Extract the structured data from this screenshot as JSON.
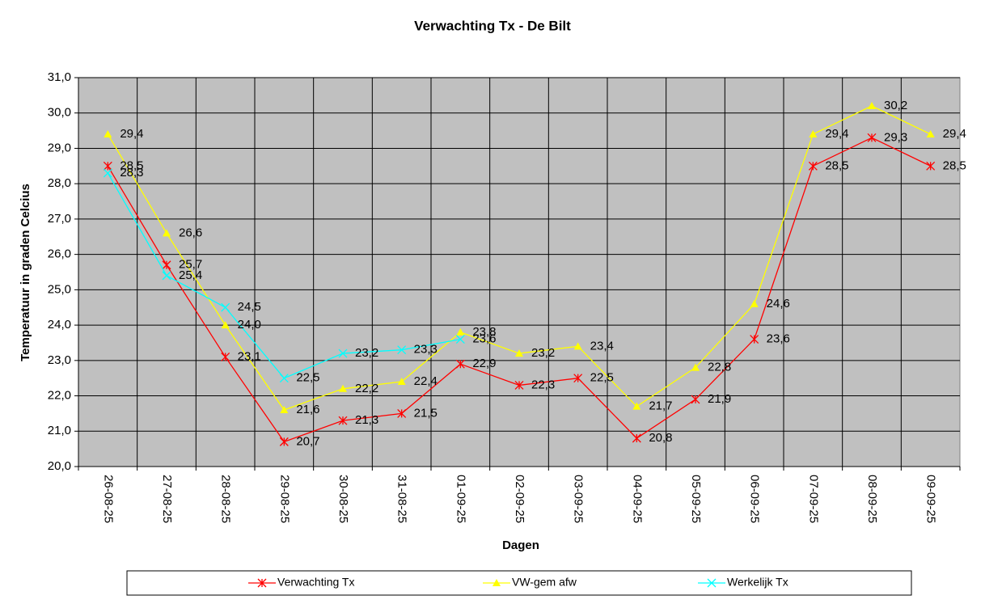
{
  "chart_data": {
    "type": "line",
    "title": "Verwachting Tx - De Bilt",
    "x_label": "Dagen",
    "y_label": "Temperatuur in graden Celcius",
    "categories": [
      "26-08-25",
      "27-08-25",
      "28-08-25",
      "29-08-25",
      "30-08-25",
      "31-08-25",
      "01-09-25",
      "02-09-25",
      "03-09-25",
      "04-09-25",
      "05-09-25",
      "06-09-25",
      "07-09-25",
      "08-09-25",
      "09-09-25"
    ],
    "series": [
      {
        "name": "Verwachting Tx",
        "color": "#ff0000",
        "marker": "star",
        "values": [
          28.5,
          25.7,
          23.1,
          20.7,
          21.3,
          21.5,
          22.9,
          22.3,
          22.5,
          20.8,
          21.9,
          23.6,
          28.5,
          29.3,
          28.5
        ],
        "value_labels": [
          "28,5",
          "25,7",
          "23,1",
          "20,7",
          "21,3",
          "21,5",
          "22,9",
          "22,3",
          "22,5",
          "20,8",
          "21,9",
          "23,6",
          "28,5",
          "29,3",
          "28,5"
        ]
      },
      {
        "name": "VW-gem afw",
        "color": "#ffff00",
        "marker": "triangle",
        "values": [
          29.4,
          26.6,
          24.0,
          21.6,
          22.2,
          22.4,
          23.8,
          23.2,
          23.4,
          21.7,
          22.8,
          24.6,
          29.4,
          30.2,
          29.4
        ],
        "value_labels": [
          "29,4",
          "26,6",
          "24,0",
          "21,6",
          "22,2",
          "22,4",
          "23,8",
          "23,2",
          "23,4",
          "21,7",
          "22,8",
          "24,6",
          "29,4",
          "30,2",
          "29,4"
        ]
      },
      {
        "name": "Werkelijk Tx",
        "color": "#00ffff",
        "marker": "x",
        "values": [
          28.3,
          25.4,
          24.5,
          22.5,
          23.2,
          23.3,
          23.6,
          null,
          null,
          null,
          null,
          null,
          null,
          null,
          null
        ],
        "value_labels": [
          "28,3",
          "25,4",
          "24,5",
          "22,5",
          "23,2",
          "23,3",
          "23,6",
          null,
          null,
          null,
          null,
          null,
          null,
          null,
          null
        ]
      }
    ],
    "ylim": [
      20,
      31
    ],
    "yticks": [
      {
        "value": 20,
        "label": "20,0"
      },
      {
        "value": 21,
        "label": "21,0"
      },
      {
        "value": 22,
        "label": "22,0"
      },
      {
        "value": 23,
        "label": "23,0"
      },
      {
        "value": 24,
        "label": "24,0"
      },
      {
        "value": 25,
        "label": "25,0"
      },
      {
        "value": 26,
        "label": "26,0"
      },
      {
        "value": 27,
        "label": "27,0"
      },
      {
        "value": 28,
        "label": "28,0"
      },
      {
        "value": 29,
        "label": "29,0"
      },
      {
        "value": 30,
        "label": "30,0"
      },
      {
        "value": 31,
        "label": "31,0"
      }
    ],
    "grid": true,
    "legend": "bottom",
    "plot_background": "#c0c0c0"
  }
}
